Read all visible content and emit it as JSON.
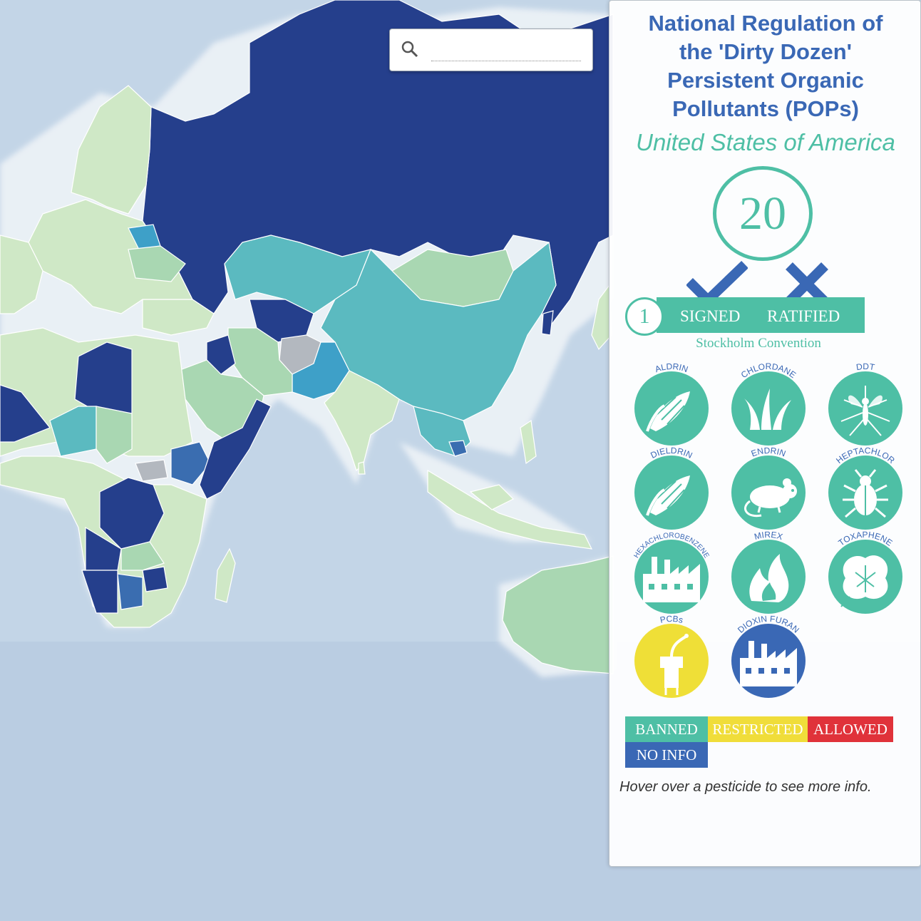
{
  "search": {
    "placeholder": ""
  },
  "panel": {
    "title_lines": [
      "National Regulation of",
      "the 'Dirty Dozen'",
      "Persistent Organic",
      "Pollutants (POPs)"
    ],
    "country": "United States of America",
    "count": "20",
    "convention": {
      "number": "1",
      "signed_label": "SIGNED",
      "ratified_label": "RATIFIED",
      "signed_status": "check-icon",
      "ratified_status": "cross-icon",
      "name": "Stockholm Convention"
    },
    "pollutants": [
      {
        "name": "ALDRIN",
        "icon": "corn-icon",
        "status": "banned"
      },
      {
        "name": "CHLORDANE",
        "icon": "grass-icon",
        "status": "banned"
      },
      {
        "name": "DDT",
        "icon": "mosquito-icon",
        "status": "banned"
      },
      {
        "name": "DIELDRIN",
        "icon": "corn-icon",
        "status": "banned"
      },
      {
        "name": "ENDRIN",
        "icon": "rat-icon",
        "status": "banned"
      },
      {
        "name": "HEPTACHLOR",
        "icon": "beetle-icon",
        "status": "banned"
      },
      {
        "name": "HEXACHLOROBENZENE",
        "icon": "factory-icon",
        "status": "banned"
      },
      {
        "name": "MIREX",
        "icon": "fire-icon",
        "status": "banned"
      },
      {
        "name": "TOXAPHENE",
        "icon": "cotton-icon",
        "status": "banned"
      },
      {
        "name": "PCBs",
        "icon": "plug-icon",
        "status": "restricted"
      },
      {
        "name": "DIOXIN FURAN",
        "icon": "factory-icon",
        "status": "no-info"
      }
    ],
    "legend": [
      {
        "label": "BANNED",
        "color": "#4ebfa5"
      },
      {
        "label": "RESTRICTED",
        "color": "#f0dd3a"
      },
      {
        "label": "ALLOWED",
        "color": "#e0323a"
      },
      {
        "label": "NO INFO",
        "color": "#3a68b5"
      }
    ],
    "hint": "Hover over a pesticide to see more info."
  },
  "colors": {
    "banned": "#4ebfa5",
    "restricted": "#efdf37",
    "allowed": "#e0323a",
    "no-info": "#3a68b5",
    "ocean": "#c5d6e6",
    "scale": [
      "#cfe8c6",
      "#a9d7b2",
      "#5bbac0",
      "#3ea0c8",
      "#3a6db0",
      "#253f8c",
      "#b3b8bf"
    ]
  }
}
